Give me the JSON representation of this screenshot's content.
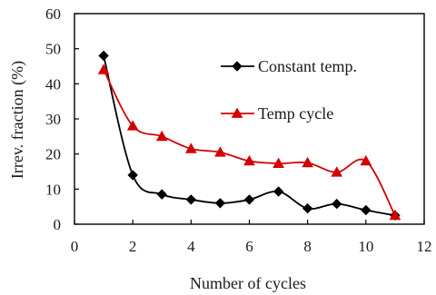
{
  "chart_data": {
    "type": "line",
    "xlabel": "Number of cycles",
    "ylabel": "Irrev. fraction (%)",
    "xlim": [
      0,
      12
    ],
    "ylim": [
      0,
      60
    ],
    "xticks": [
      "0",
      "2",
      "4",
      "6",
      "8",
      "10",
      "12"
    ],
    "yticks": [
      "0",
      "10",
      "20",
      "30",
      "40",
      "50",
      "60"
    ],
    "grid": false,
    "legend_position": "upper-right inside plot",
    "series": [
      {
        "name": "Constant temp.",
        "color": "#000000",
        "marker": "diamond",
        "x": [
          1,
          2,
          3,
          4,
          5,
          6,
          7,
          8,
          9,
          10,
          11
        ],
        "y": [
          48,
          14,
          8.5,
          7,
          6,
          7,
          9.3,
          4.5,
          5.8,
          4,
          2.5
        ]
      },
      {
        "name": "Temp cycle",
        "color": "#d40000",
        "marker": "triangle",
        "x": [
          1,
          2,
          3,
          4,
          5,
          6,
          7,
          8,
          9,
          10,
          11
        ],
        "y": [
          44,
          28,
          25,
          21.5,
          20.5,
          18,
          17.3,
          17.5,
          14.8,
          18,
          2.5
        ]
      }
    ]
  }
}
